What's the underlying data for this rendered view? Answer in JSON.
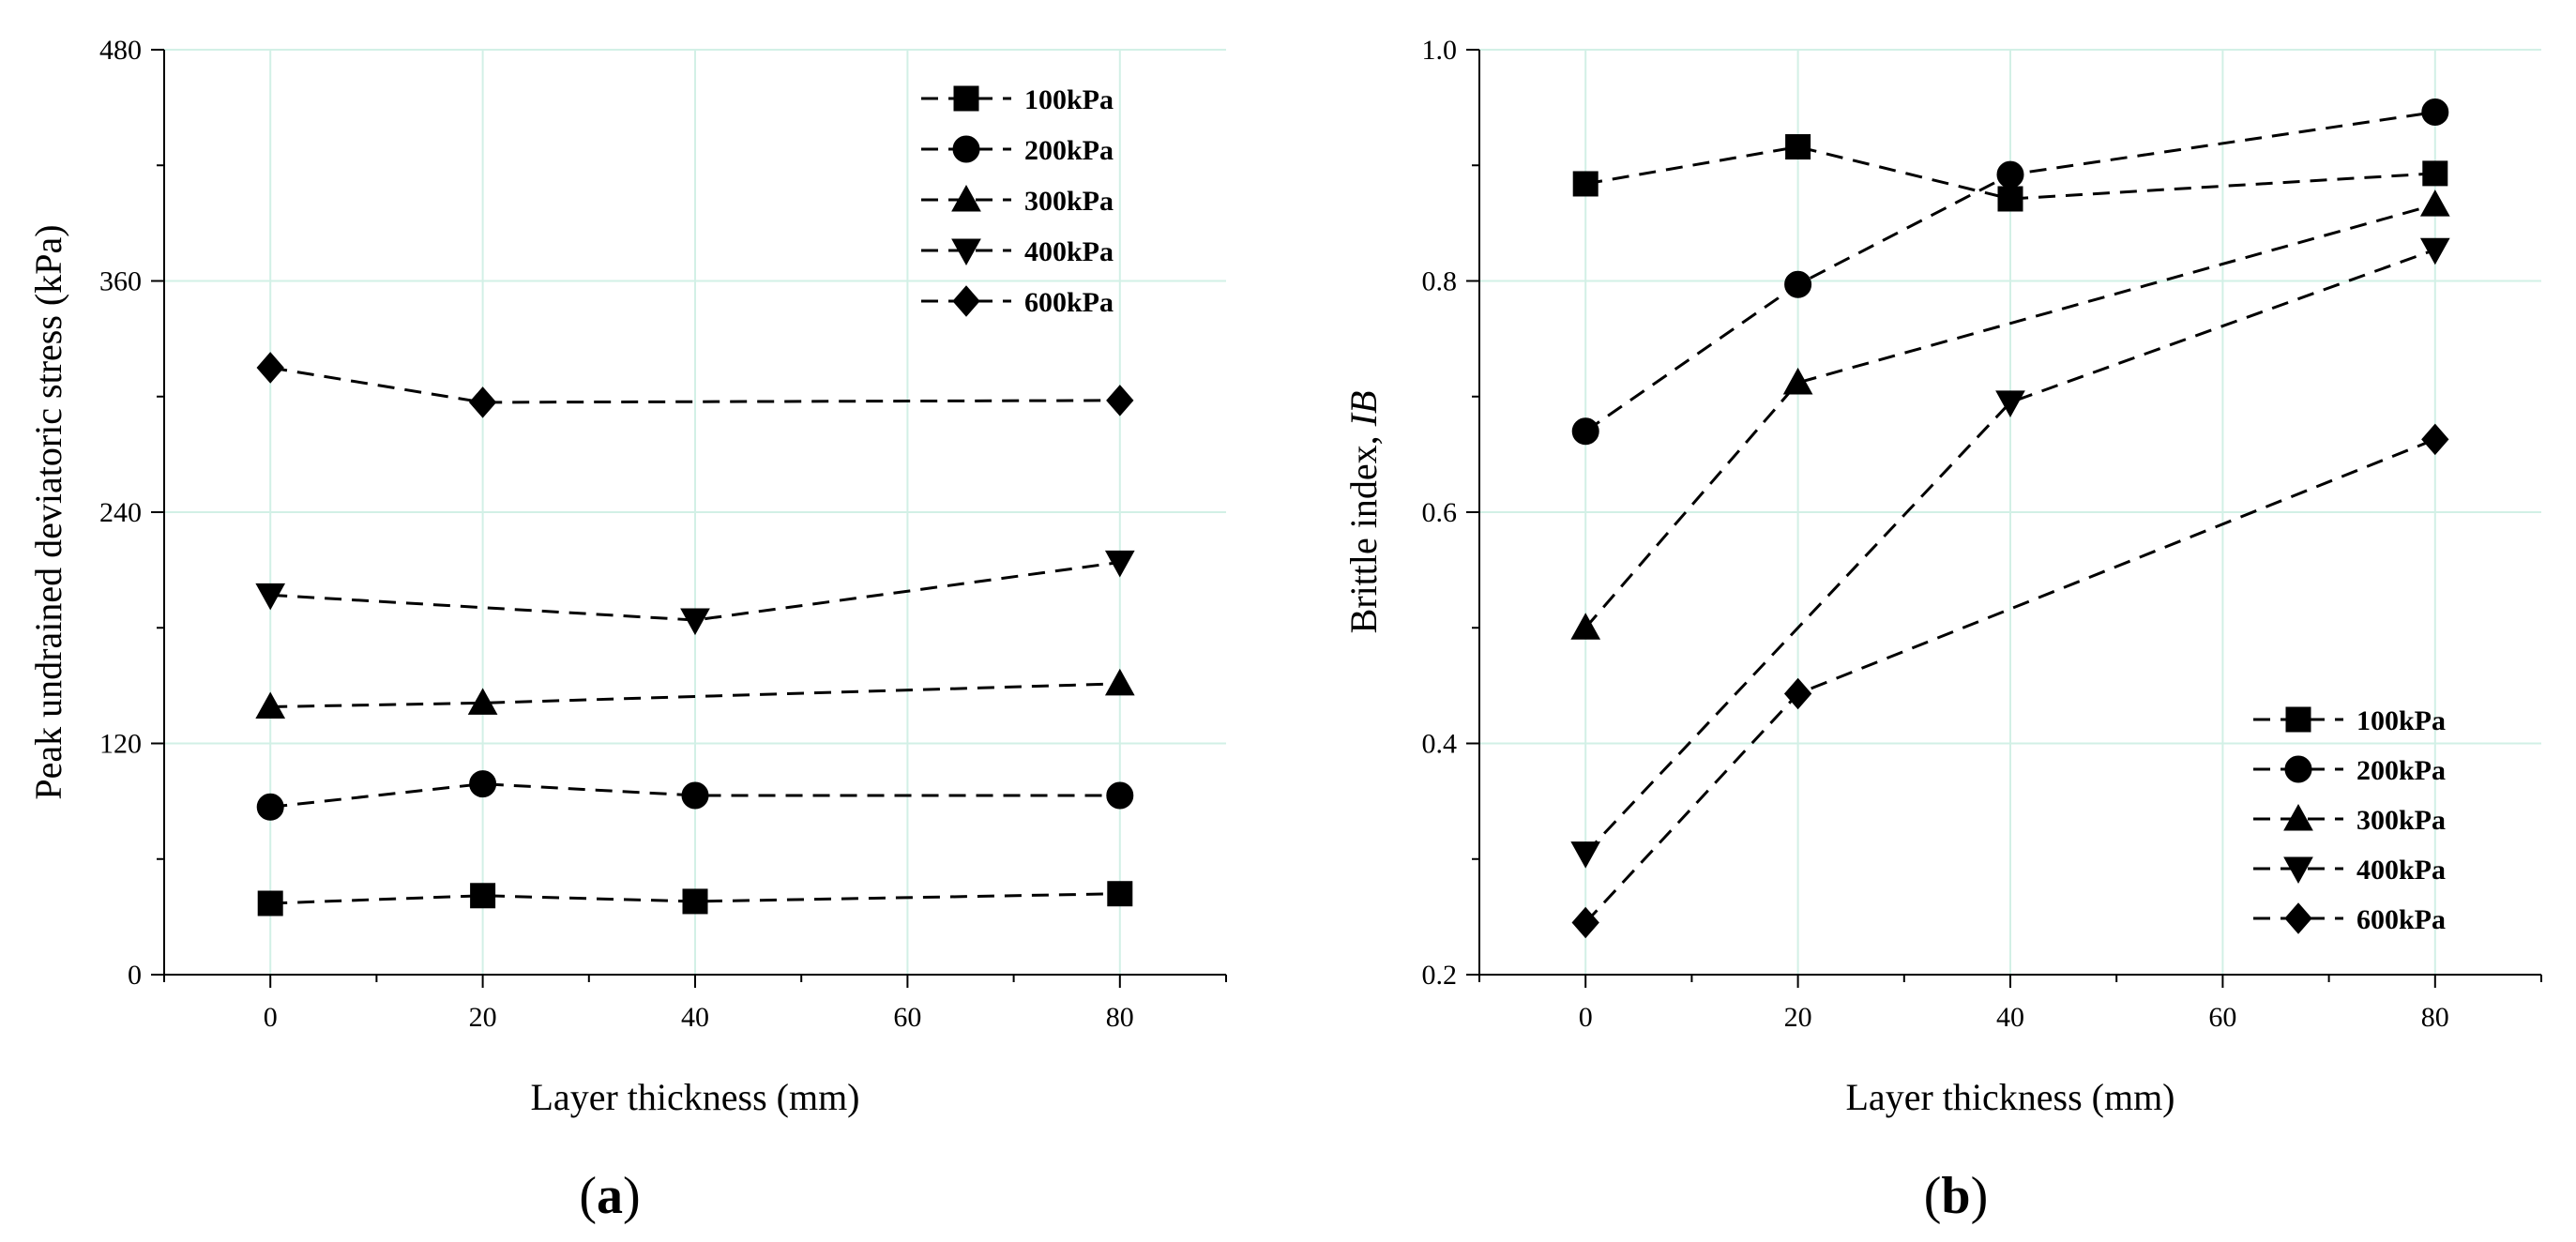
{
  "colors": {
    "grid": "#d2f0e6",
    "ink": "#000000",
    "background": "#ffffff"
  },
  "chart_data": [
    {
      "type": "line",
      "panel_label": "a",
      "xlabel": "Layer thickness (mm)",
      "ylabel": "Peak undrained deviatoric stress (kPa)",
      "xlim": [
        -10,
        90
      ],
      "ylim": [
        0,
        480
      ],
      "x_ticks": [
        0,
        20,
        40,
        60,
        80
      ],
      "y_ticks": [
        0,
        120,
        240,
        360,
        480
      ],
      "grid": true,
      "legend_position": "top-right",
      "series": [
        {
          "name": "100kPa",
          "marker": "square",
          "x": [
            0,
            20,
            40,
            80
          ],
          "values": [
            37,
            41,
            38,
            42
          ]
        },
        {
          "name": "200kPa",
          "marker": "circle",
          "x": [
            0,
            20,
            40,
            80
          ],
          "values": [
            87,
            99,
            93,
            93
          ]
        },
        {
          "name": "300kPa",
          "marker": "triangle-up",
          "x": [
            0,
            20,
            40,
            80
          ],
          "values": [
            139,
            141,
            null,
            151
          ]
        },
        {
          "name": "400kPa",
          "marker": "triangle-down",
          "x": [
            0,
            20,
            40,
            80
          ],
          "values": [
            197,
            null,
            184,
            214
          ]
        },
        {
          "name": "600kPa",
          "marker": "diamond",
          "x": [
            0,
            20,
            40,
            80
          ],
          "values": [
            315,
            297,
            null,
            298
          ]
        }
      ]
    },
    {
      "type": "line",
      "panel_label": "b",
      "xlabel": "Layer thickness (mm)",
      "ylabel": "Brittle index, ",
      "ylabel_italic": "IB",
      "xlim": [
        -10,
        90
      ],
      "ylim": [
        0.2,
        1.0
      ],
      "x_ticks": [
        0,
        20,
        40,
        60,
        80
      ],
      "y_ticks": [
        0.2,
        0.4,
        0.6,
        0.8,
        1.0
      ],
      "y_tick_labels": [
        "0.2",
        "0.4",
        "0.6",
        "0.8",
        "1.0"
      ],
      "grid": true,
      "legend_position": "bottom-right",
      "series": [
        {
          "name": "100kPa",
          "marker": "square",
          "x": [
            0,
            20,
            40,
            80
          ],
          "values": [
            0.884,
            0.916,
            0.871,
            0.893
          ]
        },
        {
          "name": "200kPa",
          "marker": "circle",
          "x": [
            0,
            20,
            40,
            80
          ],
          "values": [
            0.67,
            0.797,
            0.892,
            0.946
          ]
        },
        {
          "name": "300kPa",
          "marker": "triangle-up",
          "x": [
            0,
            20,
            40,
            80
          ],
          "values": [
            0.5,
            0.712,
            null,
            0.866
          ]
        },
        {
          "name": "400kPa",
          "marker": "triangle-down",
          "x": [
            0,
            20,
            40,
            80
          ],
          "values": [
            0.305,
            null,
            0.695,
            0.827
          ]
        },
        {
          "name": "600kPa",
          "marker": "diamond",
          "x": [
            0,
            20,
            40,
            80
          ],
          "values": [
            0.245,
            0.443,
            null,
            0.663
          ]
        }
      ]
    }
  ]
}
